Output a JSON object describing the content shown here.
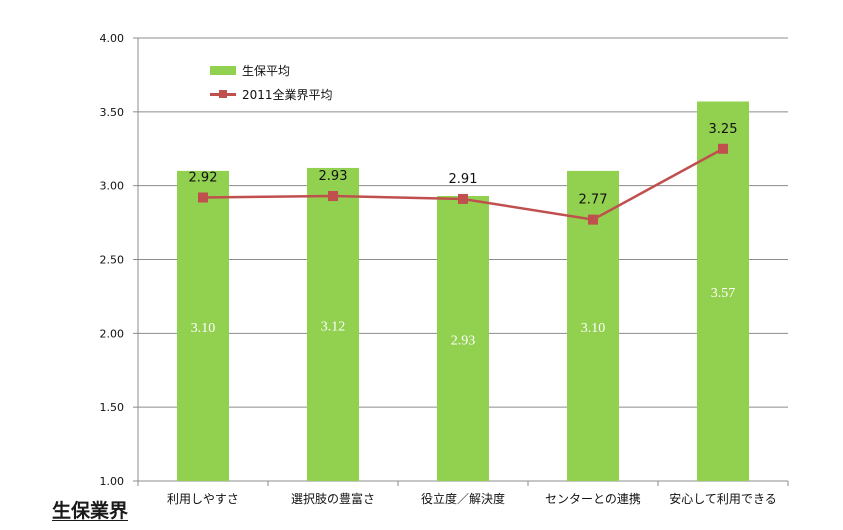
{
  "corner_label": "生保業界",
  "chart_data": {
    "type": "bar",
    "categories": [
      "利用しやすさ",
      "選択肢の豊富さ",
      "役立度／解決度",
      "センターとの連携",
      "安心して利用できる"
    ],
    "ylim": [
      1.0,
      4.0
    ],
    "yticks": [
      "1.00",
      "1.50",
      "2.00",
      "2.50",
      "3.00",
      "3.50",
      "4.00"
    ],
    "grid": true,
    "legend_position": "top-left",
    "series": [
      {
        "name": "生保平均",
        "type": "bar",
        "color": "#92d050",
        "values": [
          3.1,
          3.12,
          2.93,
          3.1,
          3.57
        ],
        "labels": [
          "3.10",
          "3.12",
          "2.93",
          "3.10",
          "3.57"
        ]
      },
      {
        "name": "2011全業界平均",
        "type": "line",
        "color": "#c0504d",
        "values": [
          2.92,
          2.93,
          2.91,
          2.77,
          3.25
        ],
        "labels": [
          "2.92",
          "2.93",
          "2.91",
          "2.77",
          "3.25"
        ]
      }
    ]
  }
}
